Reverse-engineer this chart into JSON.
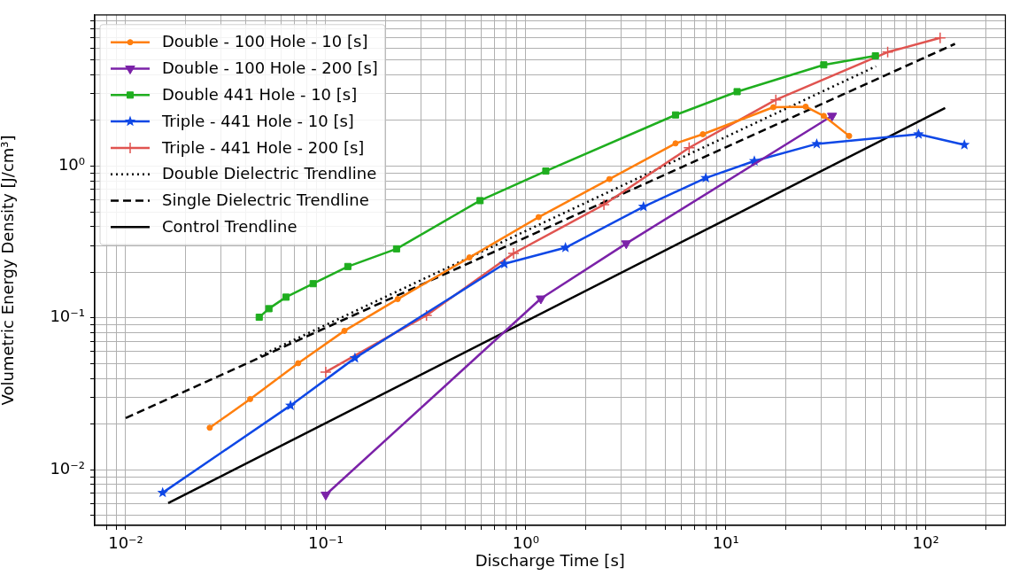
{
  "chart_data": {
    "type": "line",
    "xlabel": "Discharge Time [s]",
    "ylabel": "Volumetric Energy Density [J/cm³]",
    "log": "xy",
    "grid": true,
    "legend": "top left",
    "xlim": [
      0.007,
      250
    ],
    "ylim": [
      0.0043,
      9.9
    ],
    "xticks": [
      {
        "value": 0.008,
        "label": null
      },
      {
        "value": 0.009,
        "label": null
      },
      {
        "value": 0.01,
        "label": "10⁻²"
      },
      {
        "value": 0.02,
        "label": null
      },
      {
        "value": 0.03,
        "label": null
      },
      {
        "value": 0.04,
        "label": null
      },
      {
        "value": 0.05,
        "label": null
      },
      {
        "value": 0.06,
        "label": null
      },
      {
        "value": 0.07,
        "label": null
      },
      {
        "value": 0.08,
        "label": null
      },
      {
        "value": 0.09,
        "label": null
      },
      {
        "value": 0.1,
        "label": "10⁻¹"
      },
      {
        "value": 0.2,
        "label": null
      },
      {
        "value": 0.3,
        "label": null
      },
      {
        "value": 0.4,
        "label": null
      },
      {
        "value": 0.5,
        "label": null
      },
      {
        "value": 0.6,
        "label": null
      },
      {
        "value": 0.7,
        "label": null
      },
      {
        "value": 0.8,
        "label": null
      },
      {
        "value": 0.9,
        "label": null
      },
      {
        "value": 1,
        "label": "10⁰"
      },
      {
        "value": 2,
        "label": null
      },
      {
        "value": 3,
        "label": null
      },
      {
        "value": 4,
        "label": null
      },
      {
        "value": 5,
        "label": null
      },
      {
        "value": 6,
        "label": null
      },
      {
        "value": 7,
        "label": null
      },
      {
        "value": 8,
        "label": null
      },
      {
        "value": 9,
        "label": null
      },
      {
        "value": 10,
        "label": "10¹"
      },
      {
        "value": 20,
        "label": null
      },
      {
        "value": 30,
        "label": null
      },
      {
        "value": 40,
        "label": null
      },
      {
        "value": 50,
        "label": null
      },
      {
        "value": 60,
        "label": null
      },
      {
        "value": 70,
        "label": null
      },
      {
        "value": 80,
        "label": null
      },
      {
        "value": 90,
        "label": null
      },
      {
        "value": 100,
        "label": "10²"
      },
      {
        "value": 200,
        "label": null
      }
    ],
    "yticks": [
      {
        "value": 0.005,
        "label": null
      },
      {
        "value": 0.006,
        "label": null
      },
      {
        "value": 0.007,
        "label": null
      },
      {
        "value": 0.008,
        "label": null
      },
      {
        "value": 0.009,
        "label": null
      },
      {
        "value": 0.01,
        "label": "10⁻²"
      },
      {
        "value": 0.02,
        "label": null
      },
      {
        "value": 0.03,
        "label": null
      },
      {
        "value": 0.04,
        "label": null
      },
      {
        "value": 0.05,
        "label": null
      },
      {
        "value": 0.06,
        "label": null
      },
      {
        "value": 0.07,
        "label": null
      },
      {
        "value": 0.08,
        "label": null
      },
      {
        "value": 0.09,
        "label": null
      },
      {
        "value": 0.1,
        "label": "10⁻¹"
      },
      {
        "value": 0.2,
        "label": null
      },
      {
        "value": 0.3,
        "label": null
      },
      {
        "value": 0.4,
        "label": null
      },
      {
        "value": 0.5,
        "label": null
      },
      {
        "value": 0.6,
        "label": null
      },
      {
        "value": 0.7,
        "label": null
      },
      {
        "value": 0.8,
        "label": null
      },
      {
        "value": 0.9,
        "label": null
      },
      {
        "value": 1,
        "label": "10⁰"
      },
      {
        "value": 2,
        "label": null
      },
      {
        "value": 3,
        "label": null
      },
      {
        "value": 4,
        "label": null
      },
      {
        "value": 5,
        "label": null
      },
      {
        "value": 6,
        "label": null
      },
      {
        "value": 7,
        "label": null
      },
      {
        "value": 8,
        "label": null
      },
      {
        "value": 9,
        "label": null
      }
    ],
    "series": [
      {
        "name": "Double - 100 Hole - 10 [s]",
        "color": "#ff7f0e",
        "marker": "circle",
        "x": [
          0.0263,
          0.0419,
          0.0728,
          0.124,
          0.229,
          0.523,
          1.16,
          2.62,
          5.61,
          7.68,
          17.3,
          25.1,
          30.9,
          41.4
        ],
        "values": [
          0.0189,
          0.0292,
          0.0503,
          0.0822,
          0.133,
          0.25,
          0.461,
          0.82,
          1.41,
          1.62,
          2.44,
          2.46,
          2.14,
          1.58
        ]
      },
      {
        "name": "Double - 100 Hole - 200 [s]",
        "color": "#7b22a8",
        "marker": "triangle",
        "x": [
          0.1,
          1.19,
          3.18,
          34
        ],
        "values": [
          0.00684,
          0.134,
          0.309,
          2.14
        ]
      },
      {
        "name": "Double 441 Hole - 10 [s]",
        "color": "#1fae1f",
        "marker": "square",
        "x": [
          0.0465,
          0.052,
          0.0633,
          0.0865,
          0.129,
          0.226,
          0.591,
          1.26,
          5.61,
          11.4,
          30.9,
          56
        ],
        "values": [
          0.101,
          0.115,
          0.137,
          0.168,
          0.218,
          0.285,
          0.592,
          0.927,
          2.17,
          3.09,
          4.64,
          5.32
        ]
      },
      {
        "name": "Triple - 441 Hole - 10 [s]",
        "color": "#0f48e6",
        "marker": "star",
        "x": [
          0.0153,
          0.0667,
          0.14,
          0.782,
          1.58,
          3.88,
          7.95,
          13.9,
          28.5,
          92,
          156
        ],
        "values": [
          0.00706,
          0.0265,
          0.0544,
          0.227,
          0.29,
          0.54,
          0.835,
          1.08,
          1.4,
          1.62,
          1.38
        ]
      },
      {
        "name": "Triple - 441 Hole - 200 [s]",
        "color": "#e05450",
        "marker": "cross",
        "x": [
          0.1,
          0.319,
          0.869,
          2.46,
          6.56,
          17.8,
          64.5,
          118
        ],
        "values": [
          0.044,
          0.104,
          0.266,
          0.557,
          1.32,
          2.73,
          5.63,
          6.98
        ]
      },
      {
        "name": "Double Dielectric Trendline",
        "color": "#000000",
        "marker": "none",
        "line_style": "dotted",
        "x": [
          0.047,
          56.4
        ],
        "values": [
          0.0563,
          4.54
        ]
      },
      {
        "name": "Single Dielectric Trendline",
        "color": "#000000",
        "marker": "none",
        "line_style": "dashed",
        "x": [
          0.01,
          140
        ],
        "values": [
          0.0219,
          6.38
        ]
      },
      {
        "name": "Control Trendline",
        "color": "#000000",
        "marker": "none",
        "line_style": "solid",
        "x": [
          0.0163,
          125
        ],
        "values": [
          0.00602,
          2.41
        ]
      }
    ]
  }
}
